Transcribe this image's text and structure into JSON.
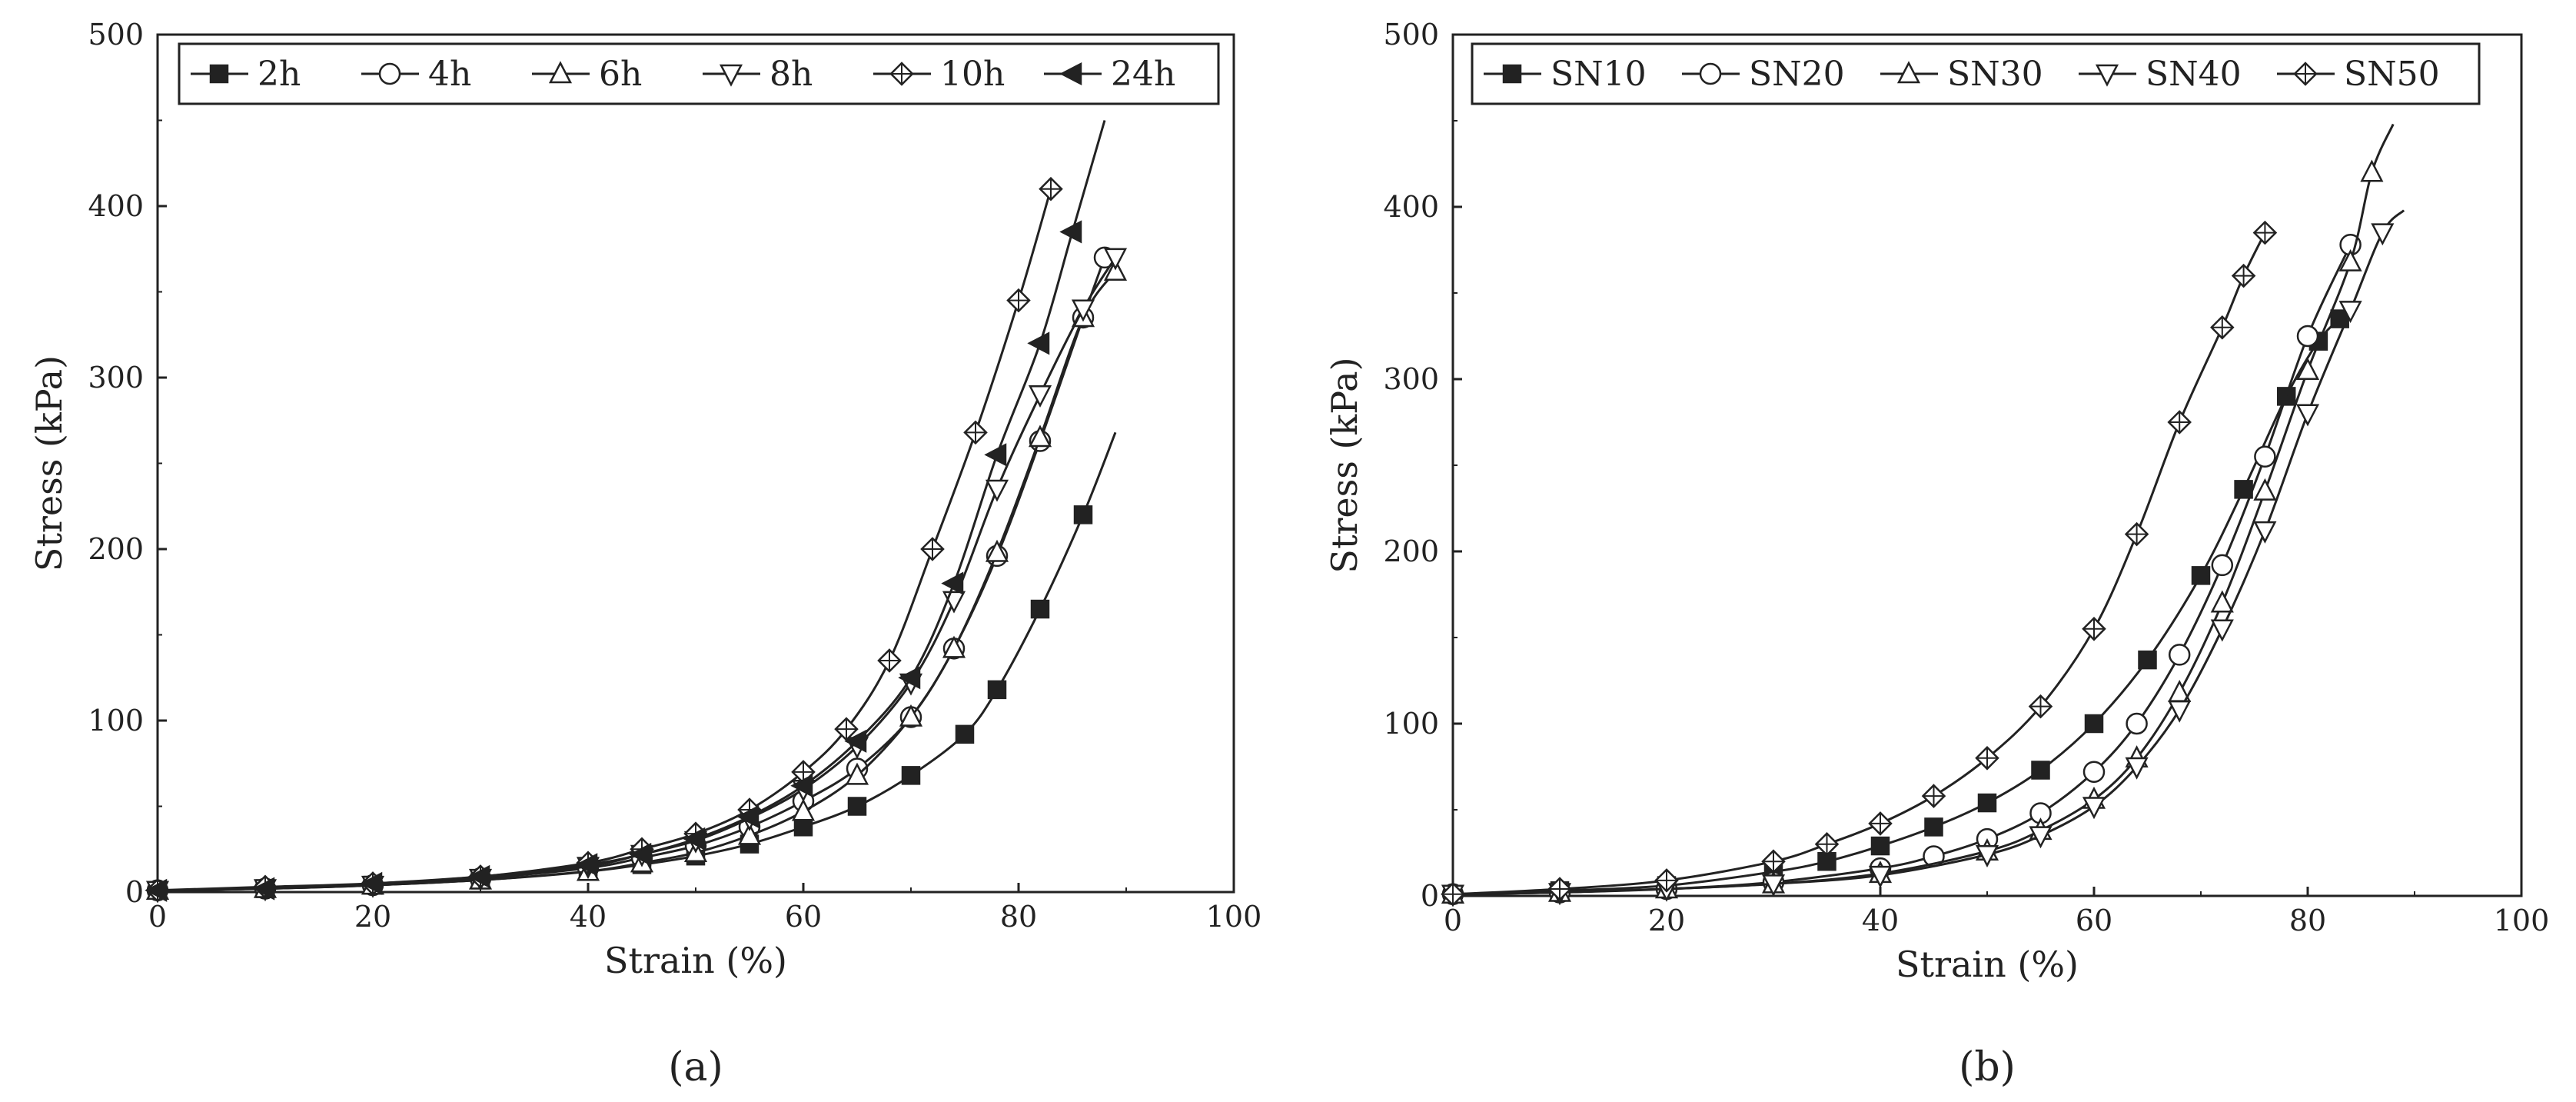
{
  "figure": {
    "caption_a": "(a)",
    "caption_b": "(b)"
  },
  "chart_data": [
    {
      "type": "line",
      "panel": "(a)",
      "xlabel": "Strain (%)",
      "ylabel": "Stress (kPa)",
      "xlim": [
        0,
        100
      ],
      "ylim": [
        0,
        500
      ],
      "xticks": [
        0,
        20,
        40,
        60,
        80,
        100
      ],
      "yticks": [
        0,
        100,
        200,
        300,
        400,
        500
      ],
      "legend_position": "top",
      "series": [
        {
          "name": "2h",
          "marker": "square-filled",
          "x": [
            0,
            10,
            20,
            30,
            40,
            45,
            50,
            55,
            60,
            65,
            70,
            75,
            78,
            82,
            86,
            89
          ],
          "y": [
            1,
            2,
            4,
            7,
            12,
            16,
            21,
            28,
            38,
            50,
            68,
            92,
            118,
            165,
            220,
            268
          ]
        },
        {
          "name": "4h",
          "marker": "circle-open",
          "x": [
            0,
            10,
            20,
            30,
            40,
            45,
            50,
            55,
            60,
            65,
            70,
            74,
            78,
            82,
            86,
            88
          ],
          "y": [
            1,
            2,
            4,
            8,
            14,
            20,
            27,
            38,
            53,
            72,
            102,
            142,
            196,
            263,
            335,
            370
          ]
        },
        {
          "name": "6h",
          "marker": "triangle-up-open",
          "x": [
            0,
            10,
            20,
            30,
            40,
            45,
            50,
            55,
            60,
            65,
            70,
            74,
            78,
            82,
            86,
            89
          ],
          "y": [
            1,
            2,
            4,
            7,
            12,
            17,
            23,
            33,
            47,
            68,
            102,
            142,
            198,
            265,
            335,
            362
          ]
        },
        {
          "name": "8h",
          "marker": "triangle-down-open",
          "x": [
            0,
            10,
            20,
            30,
            40,
            45,
            50,
            55,
            60,
            65,
            70,
            74,
            78,
            82,
            86,
            89
          ],
          "y": [
            1,
            2,
            4,
            8,
            15,
            22,
            30,
            43,
            60,
            85,
            122,
            170,
            235,
            290,
            340,
            370
          ]
        },
        {
          "name": "10h",
          "marker": "diamond-cross-open",
          "x": [
            0,
            10,
            20,
            30,
            40,
            45,
            50,
            55,
            60,
            64,
            68,
            72,
            76,
            80,
            83
          ],
          "y": [
            1,
            3,
            5,
            9,
            17,
            25,
            34,
            48,
            70,
            95,
            135,
            200,
            268,
            345,
            410
          ]
        },
        {
          "name": "24h",
          "marker": "triangle-left-filled",
          "x": [
            0,
            10,
            20,
            30,
            40,
            45,
            50,
            55,
            60,
            65,
            70,
            74,
            78,
            82,
            85,
            88
          ],
          "y": [
            1,
            2,
            5,
            9,
            16,
            22,
            31,
            44,
            62,
            88,
            125,
            180,
            255,
            320,
            385,
            450
          ]
        }
      ]
    },
    {
      "type": "line",
      "panel": "(b)",
      "xlabel": "Strain (%)",
      "ylabel": "Stress (kPa)",
      "xlim": [
        0,
        100
      ],
      "ylim": [
        0,
        500
      ],
      "xticks": [
        0,
        20,
        40,
        60,
        80,
        100
      ],
      "yticks": [
        0,
        100,
        200,
        300,
        400,
        500
      ],
      "legend_position": "top",
      "series": [
        {
          "name": "SN10",
          "marker": "square-filled",
          "x": [
            0,
            10,
            20,
            30,
            35,
            40,
            45,
            50,
            55,
            60,
            65,
            70,
            74,
            78,
            81,
            83
          ],
          "y": [
            1,
            3,
            6,
            14,
            20,
            29,
            40,
            54,
            73,
            100,
            137,
            186,
            236,
            290,
            322,
            335
          ]
        },
        {
          "name": "SN20",
          "marker": "circle-open",
          "x": [
            0,
            10,
            20,
            30,
            40,
            45,
            50,
            55,
            60,
            64,
            68,
            72,
            76,
            80,
            84
          ],
          "y": [
            1,
            2,
            4,
            8,
            16,
            23,
            33,
            48,
            72,
            100,
            140,
            192,
            255,
            325,
            378
          ]
        },
        {
          "name": "SN30",
          "marker": "triangle-up-open",
          "x": [
            0,
            10,
            20,
            30,
            40,
            50,
            55,
            60,
            64,
            68,
            72,
            76,
            80,
            84,
            86,
            88
          ],
          "y": [
            1,
            2,
            4,
            7,
            13,
            26,
            38,
            56,
            80,
            118,
            170,
            235,
            305,
            368,
            420,
            448
          ]
        },
        {
          "name": "SN40",
          "marker": "triangle-down-open",
          "x": [
            0,
            10,
            20,
            30,
            40,
            50,
            55,
            60,
            64,
            68,
            72,
            76,
            80,
            84,
            87,
            89
          ],
          "y": [
            1,
            2,
            4,
            7,
            12,
            24,
            35,
            52,
            75,
            108,
            155,
            212,
            280,
            340,
            385,
            398
          ]
        },
        {
          "name": "SN50",
          "marker": "diamond-cross-open",
          "x": [
            0,
            10,
            20,
            30,
            35,
            40,
            45,
            50,
            55,
            60,
            64,
            68,
            72,
            74,
            76
          ],
          "y": [
            1,
            4,
            9,
            20,
            30,
            42,
            58,
            80,
            110,
            155,
            210,
            275,
            330,
            360,
            385
          ]
        }
      ]
    }
  ]
}
